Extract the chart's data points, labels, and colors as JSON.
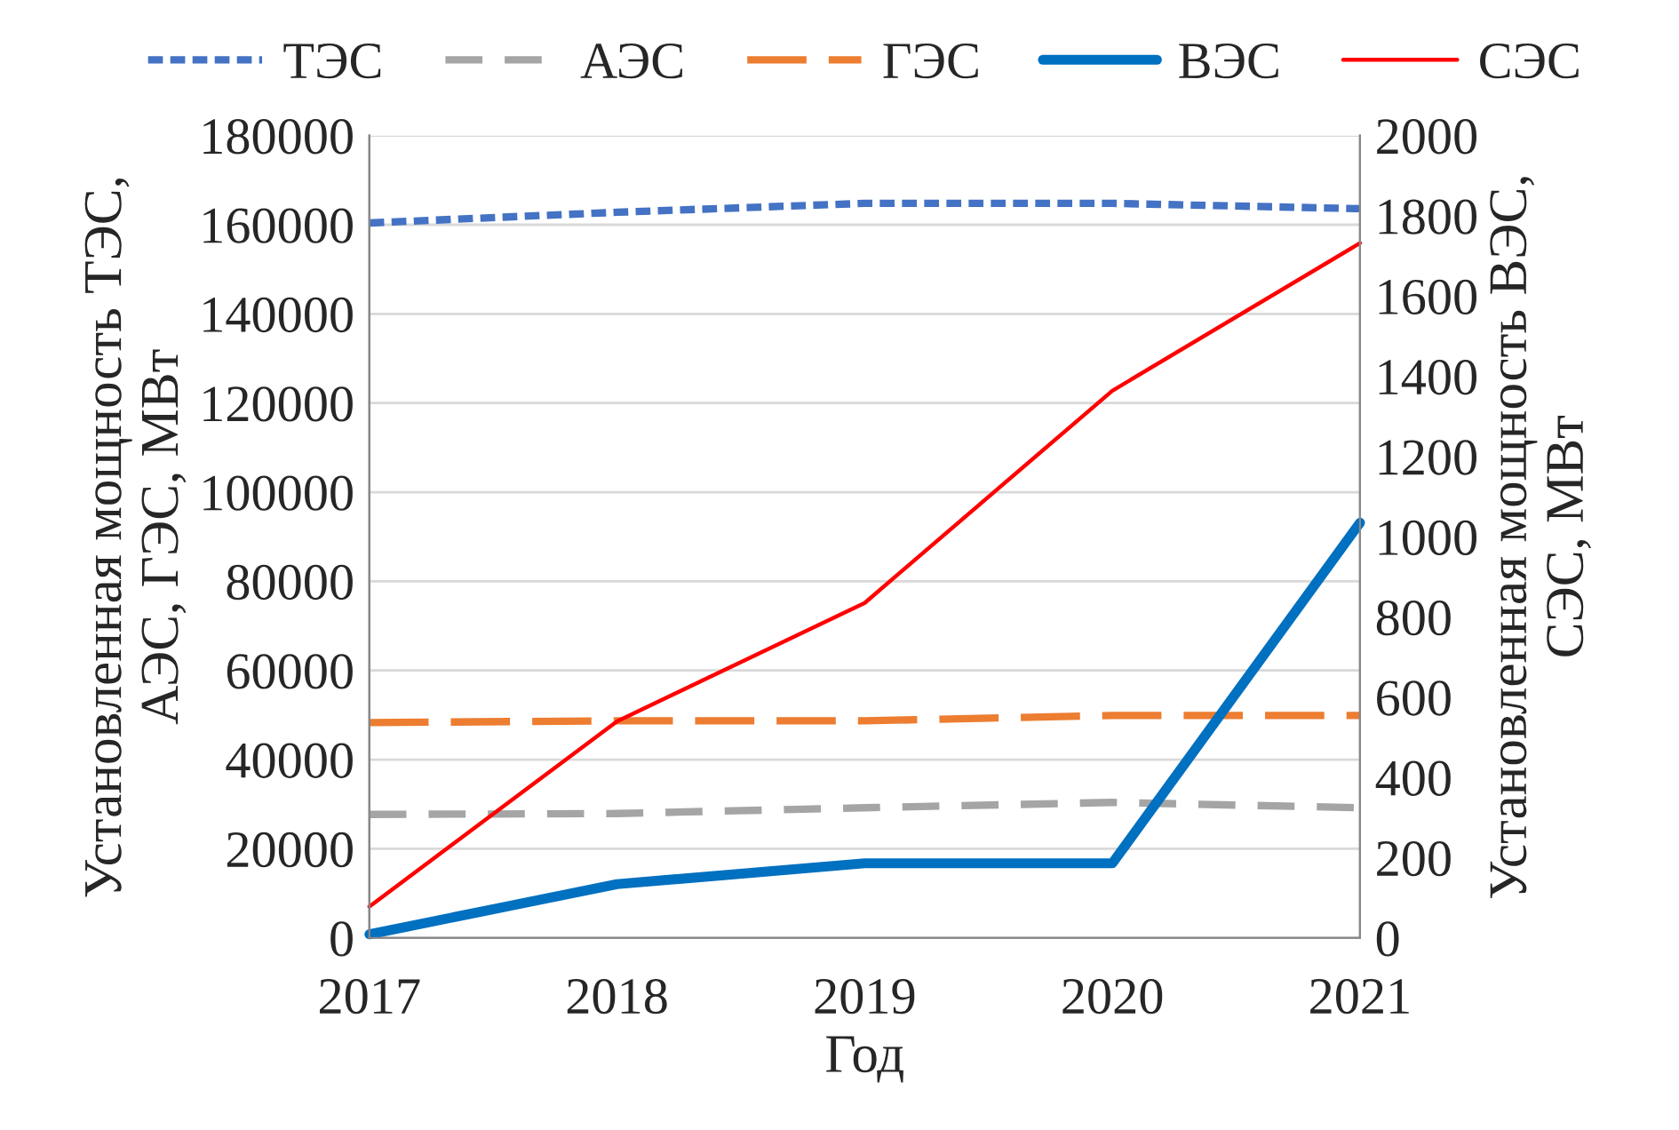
{
  "chart_data": {
    "type": "line",
    "xlabel": "Год",
    "ylabel": "Установленная мощность ТЭС,\nАЭС, ГЭС, МВт",
    "y2label": "Установленная мощность ВЭС,\nСЭС, МВт",
    "x": [
      2017,
      2018,
      2019,
      2020,
      2021
    ],
    "xlim": [
      2017,
      2021
    ],
    "xticks": [
      2017,
      2018,
      2019,
      2020,
      2021
    ],
    "ylim": [
      0,
      180000
    ],
    "yticks": [
      0,
      20000,
      40000,
      60000,
      80000,
      100000,
      120000,
      140000,
      160000,
      180000
    ],
    "y2lim": [
      0,
      2000
    ],
    "y2ticks": [
      0,
      200,
      400,
      600,
      800,
      1000,
      1200,
      1400,
      1600,
      1800,
      2000
    ],
    "grid": "y",
    "legend": "top",
    "marker": "none",
    "series": [
      {
        "name": "ТЭС",
        "color": "#4472c4",
        "line_style": "dotted",
        "values": [
          160400,
          162800,
          164800,
          164800,
          163600
        ]
      },
      {
        "name": "АЭС",
        "color": "#a5a5a5",
        "line_style": "dashed",
        "values": [
          27700,
          27900,
          29200,
          30400,
          29200
        ]
      },
      {
        "name": "ГЭС",
        "color": "#ed7d31",
        "line_style": "dashed",
        "values": [
          48300,
          48700,
          48700,
          49900,
          49900
        ]
      },
      {
        "name": "ВЭС",
        "color": "#0070c0",
        "line_style": "solid",
        "axis": "y2",
        "values": [
          9,
          134,
          186,
          186,
          1035
        ]
      },
      {
        "name": "СЭС",
        "color": "#ff0000",
        "line_style": "solid",
        "axis": "y2",
        "values": [
          78,
          540,
          835,
          1364,
          1732
        ]
      }
    ]
  }
}
